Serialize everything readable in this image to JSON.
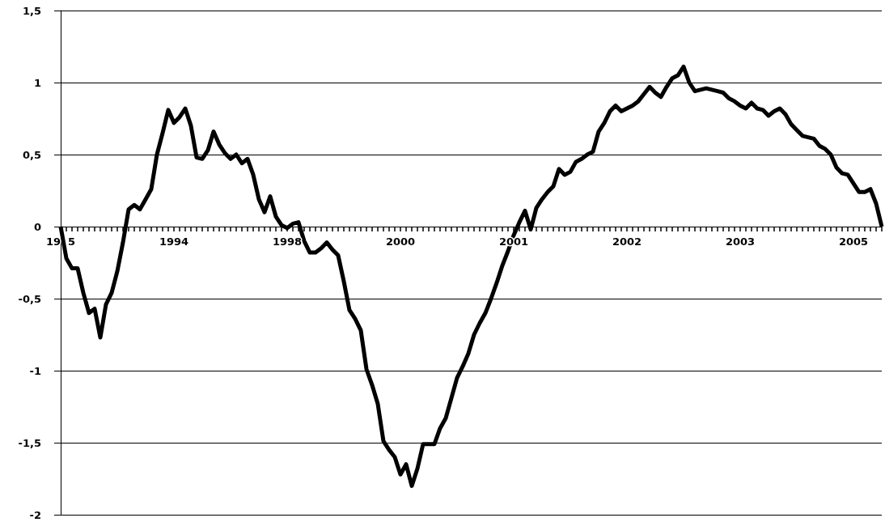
{
  "chart_data": {
    "type": "line",
    "categories": [
      "19 5",
      null,
      null,
      null,
      null,
      null,
      null,
      null,
      null,
      null,
      null,
      null,
      null,
      null,
      null,
      null,
      null,
      null,
      null,
      null,
      "1994",
      null,
      null,
      null,
      null,
      null,
      null,
      null,
      null,
      null,
      null,
      null,
      null,
      null,
      null,
      null,
      null,
      null,
      null,
      null,
      "1998",
      null,
      null,
      null,
      null,
      null,
      null,
      null,
      null,
      null,
      null,
      null,
      null,
      null,
      null,
      null,
      null,
      null,
      null,
      null,
      "2000",
      null,
      null,
      null,
      null,
      null,
      null,
      null,
      null,
      null,
      null,
      null,
      null,
      null,
      null,
      null,
      null,
      null,
      null,
      null,
      "2001",
      null,
      null,
      null,
      null,
      null,
      null,
      null,
      null,
      null,
      null,
      null,
      null,
      null,
      null,
      null,
      null,
      null,
      null,
      null,
      "2002",
      null,
      null,
      null,
      null,
      null,
      null,
      null,
      null,
      null,
      null,
      null,
      null,
      null,
      null,
      null,
      null,
      null,
      null,
      null,
      "2003",
      null,
      null,
      null,
      null,
      null,
      null,
      null,
      null,
      null,
      null,
      null,
      null,
      null,
      null,
      null,
      null,
      null,
      null,
      null,
      "2005",
      null,
      null,
      null,
      null,
      null
    ],
    "series": [
      {
        "color": "#000000",
        "values": [
          0,
          -0.22,
          -0.29,
          -0.29,
          -0.46,
          -0.6,
          -0.57,
          -0.77,
          -0.54,
          -0.46,
          -0.31,
          -0.11,
          0.12,
          0.15,
          0.12,
          0.19,
          0.26,
          0.5,
          0.65,
          0.81,
          0.72,
          0.76,
          0.82,
          0.7,
          0.48,
          0.47,
          0.53,
          0.66,
          0.57,
          0.51,
          0.47,
          0.5,
          0.44,
          0.47,
          0.36,
          0.19,
          0.1,
          0.21,
          0.07,
          0.01,
          -0.01,
          0.02,
          0.03,
          -0.1,
          -0.18,
          -0.18,
          -0.15,
          -0.11,
          -0.16,
          -0.2,
          -0.38,
          -0.58,
          -0.64,
          -0.72,
          -0.99,
          -1.1,
          -1.23,
          -1.49,
          -1.55,
          -1.6,
          -1.72,
          -1.65,
          -1.8,
          -1.68,
          -1.51,
          -1.51,
          -1.51,
          -1.4,
          -1.33,
          -1.19,
          -1.05,
          -0.97,
          -0.88,
          -0.75,
          -0.67,
          -0.6,
          -0.5,
          -0.39,
          -0.27,
          -0.17,
          -0.06,
          0.03,
          0.11,
          -0.02,
          0.13,
          0.19,
          0.24,
          0.28,
          0.4,
          0.36,
          0.38,
          0.45,
          0.47,
          0.5,
          0.52,
          0.66,
          0.72,
          0.8,
          0.84,
          0.8,
          0.82,
          0.84,
          0.87,
          0.92,
          0.97,
          0.93,
          0.9,
          0.97,
          1.03,
          1.05,
          1.11,
          1.0,
          0.94,
          0.95,
          0.96,
          0.95,
          0.94,
          0.93,
          0.89,
          0.87,
          0.84,
          0.82,
          0.86,
          0.82,
          0.81,
          0.77,
          0.8,
          0.82,
          0.78,
          0.71,
          0.67,
          0.63,
          0.62,
          0.61,
          0.56,
          0.54,
          0.5,
          0.41,
          0.37,
          0.36,
          0.3,
          0.24,
          0.24,
          0.26,
          0.16,
          0
        ]
      }
    ],
    "ylim": [
      -2,
      1.5
    ],
    "yticks": [
      -2,
      {
        "value": -1.5,
        "label": "-1,5"
      },
      -1,
      {
        "value": -0.5,
        "label": "-0,5"
      },
      0,
      {
        "value": 0.5,
        "label": "0,5"
      },
      1,
      {
        "value": 1.5,
        "label": "1,5"
      }
    ],
    "grid": "y",
    "marker": "none",
    "line_style": "solid"
  }
}
